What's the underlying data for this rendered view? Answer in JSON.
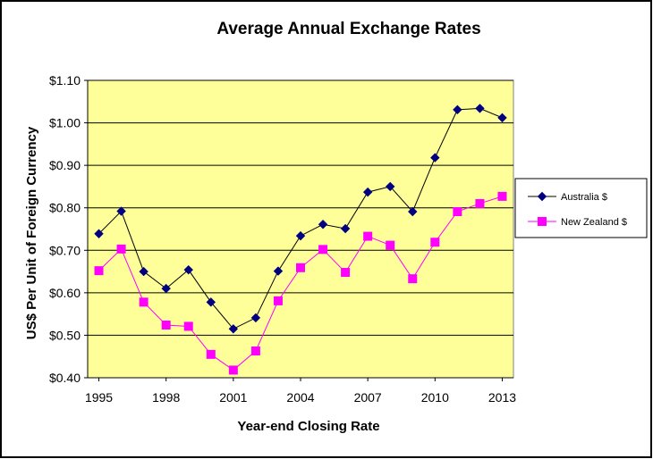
{
  "chart_data": {
    "type": "line",
    "title": "Average Annual Exchange Rates",
    "xlabel": "Year-end Closing Rate",
    "ylabel": "US$ Per Unit of Foreign Currency",
    "x": [
      1995,
      1996,
      1997,
      1998,
      1999,
      2000,
      2001,
      2002,
      2003,
      2004,
      2005,
      2006,
      2007,
      2008,
      2009,
      2010,
      2011,
      2012,
      2013
    ],
    "xticks": [
      "1995",
      "1998",
      "2001",
      "2004",
      "2007",
      "2010",
      "2013"
    ],
    "yticks": [
      "$0.40",
      "$0.50",
      "$0.60",
      "$0.70",
      "$0.80",
      "$0.90",
      "$1.00",
      "$1.10"
    ],
    "ylim": [
      0.4,
      1.1
    ],
    "grid": true,
    "legend_position": "right",
    "plot_background": "#ffff99",
    "series": [
      {
        "name": "Australia $",
        "color": "#000080",
        "marker": "diamond",
        "values": [
          0.739,
          0.792,
          0.65,
          0.61,
          0.654,
          0.578,
          0.515,
          0.541,
          0.651,
          0.734,
          0.761,
          0.751,
          0.837,
          0.85,
          0.791,
          0.918,
          1.031,
          1.034,
          1.012
        ]
      },
      {
        "name": "New Zealand $",
        "color": "#ff00ff",
        "marker": "square",
        "values": [
          0.652,
          0.703,
          0.578,
          0.524,
          0.521,
          0.455,
          0.418,
          0.463,
          0.581,
          0.659,
          0.702,
          0.648,
          0.733,
          0.712,
          0.633,
          0.719,
          0.791,
          0.81,
          0.827
        ]
      }
    ]
  }
}
